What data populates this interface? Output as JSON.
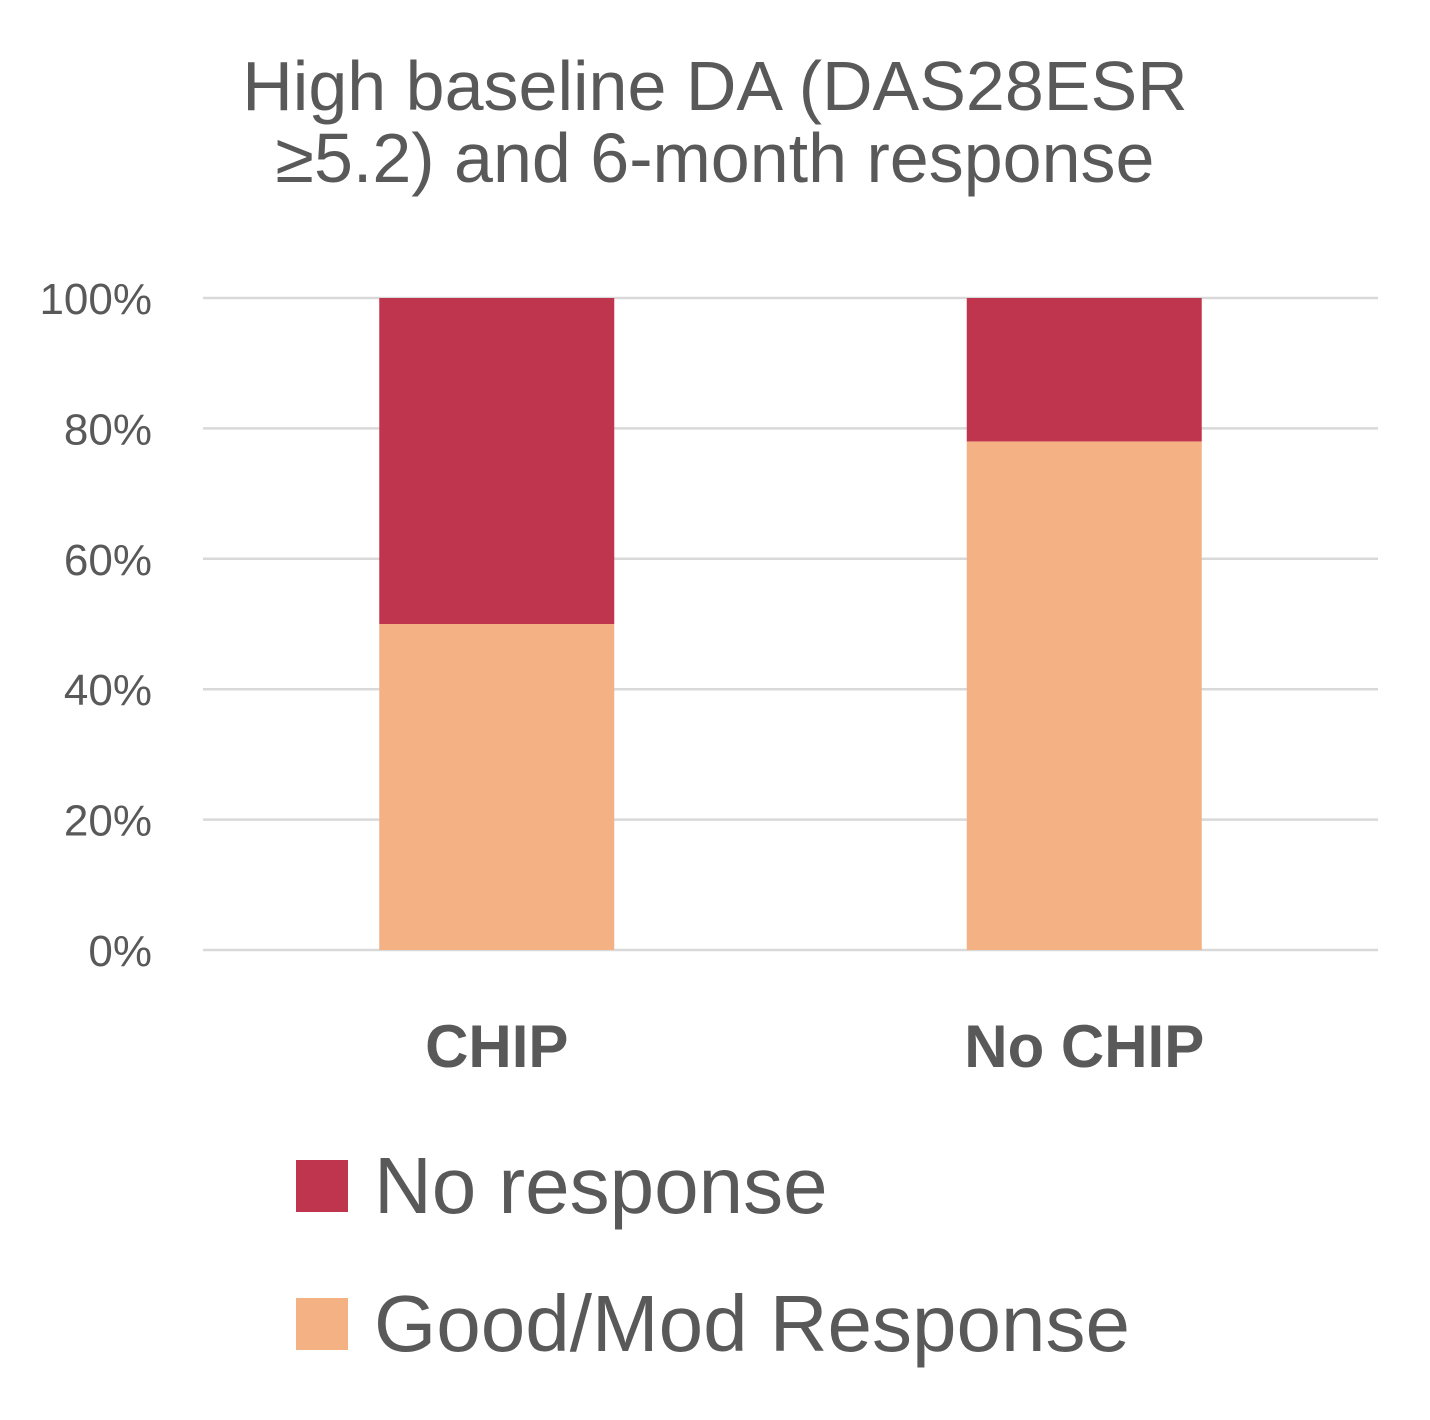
{
  "chart_data": {
    "type": "bar",
    "stacked": true,
    "title_lines": [
      "High baseline DA (DAS28ESR",
      "≥5.2) and 6-month response"
    ],
    "categories": [
      "CHIP",
      "No CHIP"
    ],
    "series": [
      {
        "name": "Good/Mod Response",
        "color": "#F4B183",
        "values": [
          50,
          78
        ]
      },
      {
        "name": "No response",
        "color": "#C0354E",
        "values": [
          50,
          22
        ]
      }
    ],
    "legend_order": [
      "No response",
      "Good/Mod Response"
    ],
    "ylim": [
      0,
      100
    ],
    "yticks": [
      0,
      20,
      40,
      60,
      80,
      100
    ],
    "ytick_labels": [
      "0%",
      "20%",
      "40%",
      "60%",
      "80%",
      "100%"
    ],
    "grid": true,
    "legend_position": "bottom",
    "xlabel": "",
    "ylabel": ""
  }
}
